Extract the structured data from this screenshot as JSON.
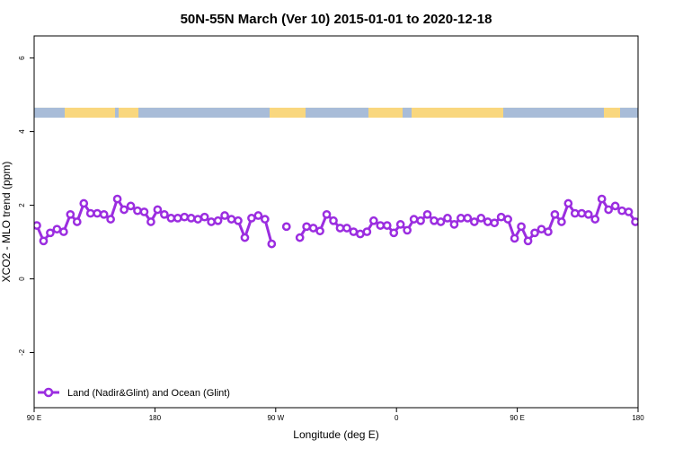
{
  "chart_data": {
    "type": "line",
    "title": "50N-55N March (Ver 10)   2015-01-01 to 2020-12-18",
    "xlabel": "Longitude (deg E)",
    "ylabel": "XCO2 - MLO trend (ppm)",
    "xlim": [
      90,
      540
    ],
    "ylim": [
      -3.5,
      6.6
    ],
    "xticks": [
      {
        "value": 90,
        "label": "90 E"
      },
      {
        "value": 180,
        "label": "180"
      },
      {
        "value": 270,
        "label": "90 W"
      },
      {
        "value": 360,
        "label": "0"
      },
      {
        "value": 450,
        "label": "90 E"
      },
      {
        "value": 540,
        "label": "180"
      }
    ],
    "yticks": [
      {
        "value": -2,
        "label": "-2"
      },
      {
        "value": 0,
        "label": "0"
      },
      {
        "value": 2,
        "label": "2"
      },
      {
        "value": 4,
        "label": "4"
      },
      {
        "value": 6,
        "label": "6"
      }
    ],
    "land_ocean_band": {
      "y_range": [
        4.38,
        4.65
      ],
      "land_color": "#f9d77e",
      "ocean_color": "#a8bcd8"
    },
    "legend": {
      "position": "bottom-left"
    },
    "series": [
      {
        "name": "Land (Nadir&Glint) and Ocean (Glint)",
        "color": "#9b2de0",
        "segments": [
          [
            [
              92,
              1.45
            ],
            [
              97,
              1.03
            ],
            [
              102,
              1.25
            ],
            [
              107,
              1.35
            ],
            [
              112,
              1.28
            ],
            [
              117,
              1.75
            ],
            [
              122,
              1.55
            ],
            [
              127,
              2.05
            ],
            [
              132,
              1.78
            ],
            [
              137,
              1.78
            ],
            [
              142,
              1.75
            ],
            [
              147,
              1.62
            ],
            [
              152,
              2.17
            ],
            [
              157,
              1.88
            ],
            [
              162,
              1.98
            ],
            [
              167,
              1.85
            ],
            [
              172,
              1.82
            ],
            [
              177,
              1.55
            ],
            [
              182,
              1.88
            ],
            [
              187,
              1.75
            ],
            [
              192,
              1.65
            ],
            [
              197,
              1.65
            ],
            [
              202,
              1.68
            ],
            [
              207,
              1.65
            ],
            [
              212,
              1.62
            ],
            [
              217,
              1.68
            ],
            [
              222,
              1.55
            ],
            [
              227,
              1.58
            ],
            [
              232,
              1.72
            ],
            [
              237,
              1.62
            ],
            [
              242,
              1.58
            ],
            [
              247,
              1.12
            ],
            [
              252,
              1.65
            ],
            [
              257,
              1.72
            ],
            [
              262,
              1.62
            ],
            [
              267,
              0.95
            ]
          ],
          [
            [
              278,
              1.42
            ]
          ],
          [
            [
              288,
              1.12
            ],
            [
              293,
              1.42
            ],
            [
              298,
              1.38
            ],
            [
              303,
              1.3
            ],
            [
              308,
              1.75
            ],
            [
              313,
              1.58
            ],
            [
              318,
              1.38
            ],
            [
              323,
              1.38
            ],
            [
              328,
              1.28
            ],
            [
              333,
              1.22
            ],
            [
              338,
              1.28
            ],
            [
              343,
              1.58
            ],
            [
              348,
              1.45
            ],
            [
              353,
              1.45
            ],
            [
              358,
              1.25
            ],
            [
              363,
              1.48
            ],
            [
              368,
              1.32
            ],
            [
              373,
              1.62
            ],
            [
              378,
              1.58
            ],
            [
              383,
              1.75
            ],
            [
              388,
              1.58
            ],
            [
              393,
              1.55
            ],
            [
              398,
              1.65
            ],
            [
              403,
              1.48
            ],
            [
              408,
              1.65
            ],
            [
              413,
              1.65
            ],
            [
              418,
              1.55
            ],
            [
              423,
              1.65
            ],
            [
              428,
              1.55
            ],
            [
              433,
              1.52
            ],
            [
              438,
              1.68
            ],
            [
              443,
              1.62
            ],
            [
              448,
              1.1
            ],
            [
              453,
              1.42
            ],
            [
              458,
              1.03
            ],
            [
              463,
              1.25
            ],
            [
              468,
              1.35
            ],
            [
              473,
              1.28
            ],
            [
              478,
              1.75
            ],
            [
              483,
              1.55
            ],
            [
              488,
              2.05
            ],
            [
              493,
              1.78
            ],
            [
              498,
              1.78
            ],
            [
              503,
              1.75
            ],
            [
              508,
              1.62
            ],
            [
              513,
              2.17
            ],
            [
              518,
              1.88
            ],
            [
              523,
              1.98
            ],
            [
              528,
              1.85
            ],
            [
              533,
              1.82
            ],
            [
              538,
              1.55
            ]
          ]
        ]
      }
    ]
  }
}
